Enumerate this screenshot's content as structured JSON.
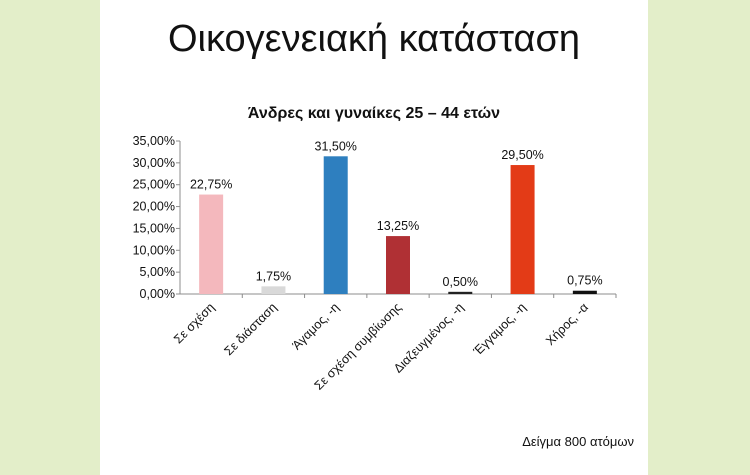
{
  "slide": {
    "title": "Οικογενειακή κατάσταση",
    "note": "Δείγμα 800 ατόμων"
  },
  "chart_data": {
    "type": "bar",
    "title": "Άνδρες και γυναίκες 25 – 44 ετών",
    "xlabel": "",
    "ylabel": "",
    "ylim": [
      0,
      35
    ],
    "yticks": [
      "0,00%",
      "5,00%",
      "10,00%",
      "15,00%",
      "20,00%",
      "25,00%",
      "30,00%",
      "35,00%"
    ],
    "grid": false,
    "categories": [
      "Σε σχέση",
      "Σε διάσταση",
      "Άγαμος, -η",
      "Σε σχέση συμβίωσης",
      "Διαζευγμένος, -η",
      "Έγγαμος, -η",
      "Χήρος, -α"
    ],
    "values": [
      22.75,
      1.75,
      31.5,
      13.25,
      0.5,
      29.5,
      0.75
    ],
    "value_labels": [
      "22,75%",
      "1,75%",
      "31,50%",
      "13,25%",
      "0,50%",
      "29,50%",
      "0,75%"
    ],
    "colors": [
      "#f4b8bd",
      "#d9d9d9",
      "#2e7fbf",
      "#b03034",
      "#222222",
      "#e33b17",
      "#111111"
    ]
  }
}
